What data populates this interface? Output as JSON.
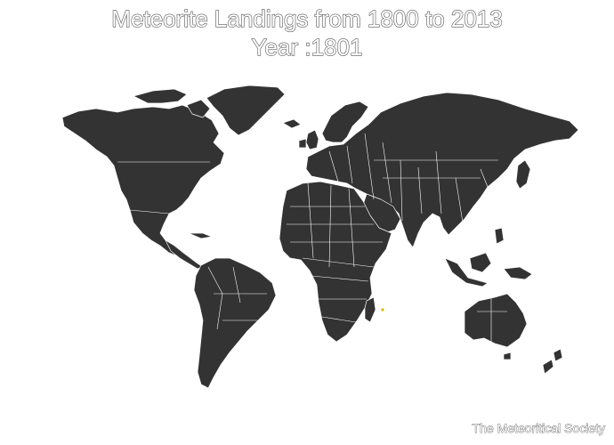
{
  "title": "Meteorite Landings from 1800 to 2013",
  "subtitle_prefix": "Year :",
  "year": "1801",
  "credit": "The Meteoritical Society",
  "colors": {
    "land": "#333333",
    "borders": "#ffffff",
    "background": "#ffffff",
    "meteorite_point": "#e8b400",
    "title_outline": "#555555"
  },
  "landings": [
    {
      "year": 1801,
      "region": "Indian Ocean (Mascarene area)"
    }
  ]
}
